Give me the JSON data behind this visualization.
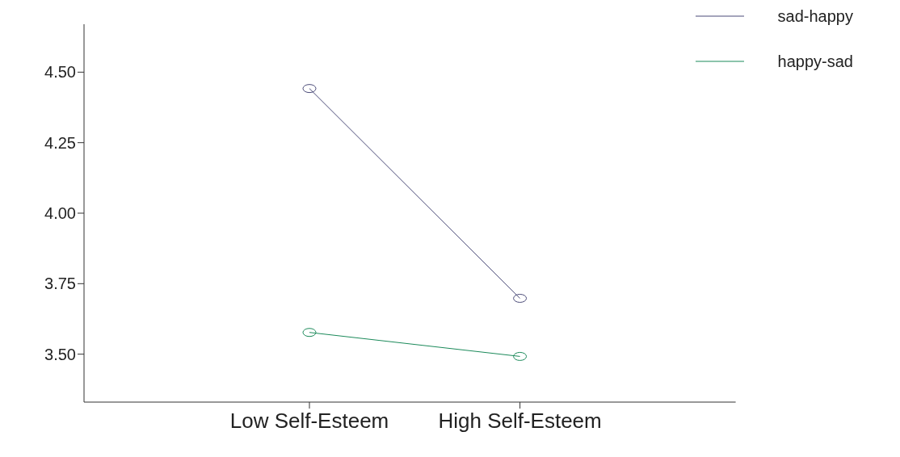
{
  "chart_data": {
    "type": "line",
    "categories": [
      "Low Self-Esteem",
      "High Self-Esteem"
    ],
    "series": [
      {
        "name": "sad-happy",
        "color": "#4b4b78",
        "values": [
          4.442,
          3.698
        ]
      },
      {
        "name": "happy-sad",
        "color": "#1b8a5a",
        "values": [
          3.577,
          3.492
        ]
      }
    ],
    "ylim": [
      3.33,
      4.67
    ],
    "yticks": [
      {
        "value": 3.5,
        "label": "3.50"
      },
      {
        "value": 3.75,
        "label": "3.75"
      },
      {
        "value": 4,
        "label": "4.00"
      },
      {
        "value": 4.25,
        "label": "4.25"
      },
      {
        "value": 4.5,
        "label": "4.50"
      }
    ],
    "legend": "top right",
    "marker": "circle",
    "line_style": "solid",
    "grid": false
  }
}
